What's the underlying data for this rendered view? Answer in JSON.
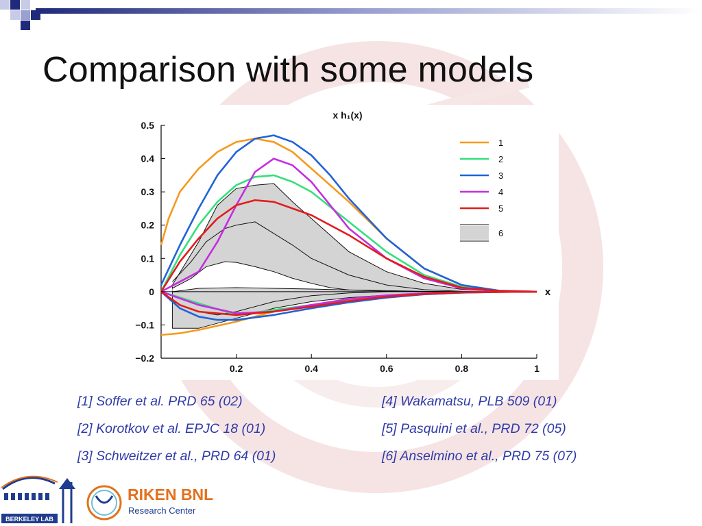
{
  "slide": {
    "title": "Comparison with some models",
    "colors": {
      "accent": "#2e3aa8",
      "squares": [
        "#1f2a7a",
        "#9aa0d0",
        "#c8cbe6"
      ]
    }
  },
  "chart_data": {
    "type": "line",
    "title": "x h₁(x)",
    "xlabel": "x",
    "ylabel": "",
    "xlim": [
      0,
      1
    ],
    "ylim": [
      -0.2,
      0.5
    ],
    "x_ticks": [
      "0.2",
      "0.4",
      "0.6",
      "0.8",
      "1"
    ],
    "y_ticks": [
      "0.5",
      "0.4",
      "0.3",
      "0.2",
      "0.1",
      "0",
      "−0.1",
      "−0.2"
    ],
    "legend": [
      "1",
      "2",
      "3",
      "4",
      "5",
      "6"
    ],
    "legend_position": "top-right",
    "series": [
      {
        "name": "1",
        "color": "#f59a1c",
        "upper": {
          "x": [
            0,
            0.02,
            0.05,
            0.1,
            0.15,
            0.2,
            0.25,
            0.3,
            0.35,
            0.4,
            0.5,
            0.6,
            0.7,
            0.8,
            0.9,
            1.0
          ],
          "y": [
            0.14,
            0.22,
            0.3,
            0.37,
            0.42,
            0.45,
            0.46,
            0.45,
            0.42,
            0.37,
            0.27,
            0.16,
            0.07,
            0.02,
            0.003,
            0
          ]
        },
        "lower": {
          "x": [
            0,
            0.05,
            0.1,
            0.2,
            0.3,
            0.4,
            0.5,
            0.6,
            0.7,
            0.8,
            0.9,
            1.0
          ],
          "y": [
            -0.13,
            -0.125,
            -0.115,
            -0.09,
            -0.06,
            -0.04,
            -0.025,
            -0.015,
            -0.008,
            -0.003,
            -0.001,
            0
          ]
        }
      },
      {
        "name": "2",
        "color": "#33e07a",
        "upper": {
          "x": [
            0,
            0.05,
            0.1,
            0.15,
            0.2,
            0.25,
            0.3,
            0.35,
            0.4,
            0.5,
            0.6,
            0.7,
            0.8,
            0.9,
            1.0
          ],
          "y": [
            0,
            0.11,
            0.2,
            0.27,
            0.32,
            0.345,
            0.35,
            0.33,
            0.3,
            0.21,
            0.12,
            0.05,
            0.015,
            0.002,
            0
          ]
        },
        "lower": {
          "x": [
            0,
            0.2,
            0.3,
            0.4,
            0.5,
            0.6,
            0.7,
            0.8,
            0.9,
            1.0
          ],
          "y": [
            0,
            -0.07,
            -0.055,
            -0.04,
            -0.028,
            -0.017,
            -0.008,
            -0.003,
            -0.001,
            0
          ]
        }
      },
      {
        "name": "3",
        "color": "#1f63d8",
        "upper": {
          "x": [
            0,
            0.05,
            0.1,
            0.15,
            0.2,
            0.25,
            0.3,
            0.35,
            0.4,
            0.45,
            0.5,
            0.6,
            0.7,
            0.8,
            0.9,
            1.0
          ],
          "y": [
            0.02,
            0.14,
            0.25,
            0.35,
            0.42,
            0.46,
            0.47,
            0.45,
            0.41,
            0.35,
            0.28,
            0.16,
            0.07,
            0.02,
            0.003,
            0
          ]
        },
        "lower": {
          "x": [
            0,
            0.05,
            0.1,
            0.15,
            0.2,
            0.3,
            0.4,
            0.5,
            0.6,
            0.7,
            0.8,
            0.9,
            1.0
          ],
          "y": [
            0,
            -0.05,
            -0.075,
            -0.085,
            -0.085,
            -0.07,
            -0.05,
            -0.032,
            -0.018,
            -0.008,
            -0.003,
            -0.001,
            0
          ]
        }
      },
      {
        "name": "4",
        "color": "#c52ee0",
        "upper": {
          "x": [
            0,
            0.1,
            0.15,
            0.2,
            0.25,
            0.3,
            0.35,
            0.4,
            0.45,
            0.5,
            0.6,
            0.7,
            0.8,
            0.9,
            1.0
          ],
          "y": [
            0,
            0.06,
            0.15,
            0.26,
            0.36,
            0.4,
            0.38,
            0.33,
            0.26,
            0.19,
            0.1,
            0.04,
            0.01,
            0.002,
            0
          ]
        },
        "lower": {
          "x": [
            0,
            0.1,
            0.2,
            0.3,
            0.4,
            0.5,
            0.6,
            0.7,
            0.8,
            0.9,
            1.0
          ],
          "y": [
            0,
            -0.04,
            -0.065,
            -0.06,
            -0.04,
            -0.022,
            -0.011,
            -0.005,
            -0.002,
            0,
            0
          ]
        }
      },
      {
        "name": "5",
        "color": "#e31b1b",
        "upper": {
          "x": [
            0,
            0.05,
            0.1,
            0.15,
            0.2,
            0.25,
            0.3,
            0.4,
            0.5,
            0.6,
            0.7,
            0.8,
            0.9,
            1.0
          ],
          "y": [
            0,
            0.09,
            0.16,
            0.22,
            0.26,
            0.275,
            0.27,
            0.23,
            0.17,
            0.1,
            0.045,
            0.012,
            0.002,
            0
          ]
        },
        "lower": {
          "x": [
            0,
            0.05,
            0.1,
            0.2,
            0.3,
            0.4,
            0.5,
            0.6,
            0.7,
            0.8,
            0.9,
            1.0
          ],
          "y": [
            0,
            -0.04,
            -0.06,
            -0.07,
            -0.06,
            -0.045,
            -0.028,
            -0.015,
            -0.007,
            -0.002,
            -0.001,
            0
          ]
        }
      },
      {
        "name": "6",
        "color": "#111111",
        "band": true,
        "fill": "#d4d4d4",
        "upper": {
          "x": [
            0.03,
            0.1,
            0.15,
            0.2,
            0.25,
            0.3,
            0.35,
            0.4,
            0.45,
            0.5,
            0.6,
            0.7,
            0.8,
            0.9,
            1.0
          ],
          "y": [
            0.02,
            0.15,
            0.26,
            0.31,
            0.32,
            0.325,
            0.27,
            0.22,
            0.17,
            0.12,
            0.06,
            0.025,
            0.007,
            0.001,
            0
          ]
        },
        "lower": {
          "x": [
            0.03,
            0.1,
            0.2,
            0.3,
            0.4,
            0.5,
            0.6,
            0.7,
            0.8,
            0.9,
            1.0
          ],
          "y": [
            -0.11,
            -0.11,
            -0.08,
            -0.05,
            -0.03,
            -0.018,
            -0.01,
            -0.005,
            -0.002,
            -0.001,
            0
          ]
        },
        "inner": [
          {
            "x": [
              0.03,
              0.08,
              0.12,
              0.17,
              0.2,
              0.25,
              0.3,
              0.35,
              0.4,
              0.5,
              0.6,
              0.7,
              0.8,
              0.9,
              1.0
            ],
            "y": [
              0.03,
              0.09,
              0.15,
              0.19,
              0.2,
              0.21,
              0.175,
              0.14,
              0.1,
              0.05,
              0.02,
              0.006,
              0.001,
              0,
              0
            ]
          },
          {
            "x": [
              0.03,
              0.08,
              0.12,
              0.17,
              0.2,
              0.25,
              0.3,
              0.35,
              0.4,
              0.45,
              0.5,
              0.6,
              0.7,
              0.8,
              0.9,
              1.0
            ],
            "y": [
              0.01,
              0.04,
              0.075,
              0.09,
              0.088,
              0.075,
              0.06,
              0.04,
              0.025,
              0.012,
              0.005,
              0.001,
              0,
              0,
              0,
              0
            ]
          },
          {
            "x": [
              0.03,
              0.1,
              0.2,
              0.3,
              0.4,
              0.5,
              0.6,
              0.7,
              0.8,
              0.9,
              1.0
            ],
            "y": [
              0.0,
              0.01,
              0.012,
              0.01,
              0.008,
              0.005,
              0.003,
              0.001,
              0,
              0,
              0
            ]
          },
          {
            "x": [
              0.03,
              0.1,
              0.15,
              0.2,
              0.3,
              0.4,
              0.5,
              0.6
            ],
            "y": [
              -0.03,
              -0.06,
              -0.07,
              -0.06,
              -0.03,
              -0.012,
              -0.004,
              0
            ]
          }
        ]
      }
    ]
  },
  "references": {
    "left": [
      "[1] Soffer et al. PRD 65 (02)",
      "[2] Korotkov et al. EPJC 18 (01)",
      "[3] Schweitzer et al., PRD 64 (01)"
    ],
    "right": [
      "[4] Wakamatsu, PLB 509 (01)",
      "[5] Pasquini et al., PRD 72 (05)",
      "[6] Anselmino et al., PRD 75 (07)"
    ]
  },
  "logos": {
    "berkeley": {
      "label": "BERKELEY LAB",
      "color": "#1f3c8f"
    },
    "riken": {
      "name": "RIKEN BNL",
      "sub": "Research Center",
      "name_color": "#e4711b",
      "sub_color": "#1f3c8f"
    }
  }
}
